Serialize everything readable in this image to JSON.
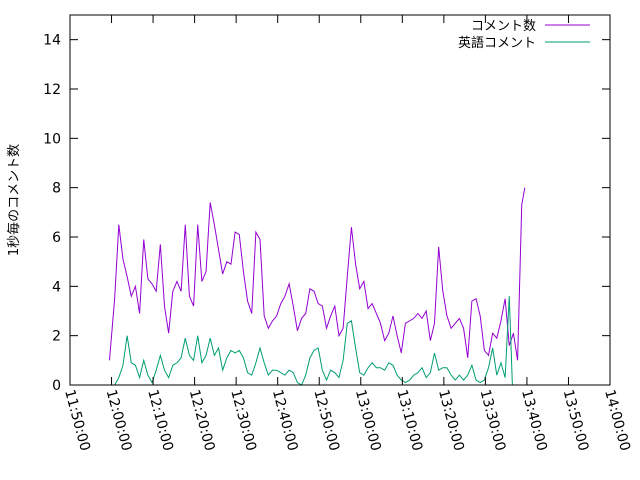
{
  "chart_data": {
    "type": "line",
    "title": "",
    "xlabel": "",
    "ylabel": "1秒毎のコメント数",
    "xlim": [
      "11:50:00",
      "14:00:00"
    ],
    "ylim": [
      0,
      15
    ],
    "x_ticks": [
      "11:50:00",
      "12:00:00",
      "12:10:00",
      "12:20:00",
      "12:30:00",
      "12:40:00",
      "12:50:00",
      "13:00:00",
      "13:10:00",
      "13:20:00",
      "13:30:00",
      "13:40:00",
      "13:50:00",
      "14:00:00"
    ],
    "y_ticks": [
      0,
      2,
      4,
      6,
      8,
      10,
      12,
      14
    ],
    "grid": false,
    "legend_position": "top-right",
    "series": [
      {
        "name": "コメント数",
        "color": "#9400d3",
        "points": [
          [
            "11:59:30",
            1.0
          ],
          [
            "12:00:45",
            3.5
          ],
          [
            "12:01:45",
            6.5
          ],
          [
            "12:02:45",
            5.1
          ],
          [
            "12:03:45",
            4.4
          ],
          [
            "12:04:45",
            3.6
          ],
          [
            "12:05:45",
            4.0
          ],
          [
            "12:06:45",
            2.9
          ],
          [
            "12:07:45",
            5.9
          ],
          [
            "12:08:45",
            4.3
          ],
          [
            "12:09:45",
            4.1
          ],
          [
            "12:10:45",
            3.8
          ],
          [
            "12:11:45",
            5.7
          ],
          [
            "12:12:45",
            3.2
          ],
          [
            "12:13:45",
            2.1
          ],
          [
            "12:14:45",
            3.8
          ],
          [
            "12:15:45",
            4.2
          ],
          [
            "12:16:45",
            3.8
          ],
          [
            "12:17:45",
            6.5
          ],
          [
            "12:18:45",
            3.6
          ],
          [
            "12:19:45",
            3.2
          ],
          [
            "12:20:45",
            6.5
          ],
          [
            "12:21:45",
            4.2
          ],
          [
            "12:22:45",
            4.6
          ],
          [
            "12:23:45",
            7.4
          ],
          [
            "12:24:45",
            6.5
          ],
          [
            "12:25:45",
            5.5
          ],
          [
            "12:26:45",
            4.5
          ],
          [
            "12:27:45",
            5.0
          ],
          [
            "12:28:45",
            4.9
          ],
          [
            "12:29:45",
            6.2
          ],
          [
            "12:30:45",
            6.1
          ],
          [
            "12:31:45",
            4.6
          ],
          [
            "12:32:45",
            3.4
          ],
          [
            "12:33:45",
            2.9
          ],
          [
            "12:34:45",
            6.2
          ],
          [
            "12:35:45",
            5.9
          ],
          [
            "12:36:45",
            2.8
          ],
          [
            "12:37:45",
            2.3
          ],
          [
            "12:38:45",
            2.6
          ],
          [
            "12:39:45",
            2.8
          ],
          [
            "12:40:45",
            3.3
          ],
          [
            "12:41:45",
            3.6
          ],
          [
            "12:42:45",
            4.1
          ],
          [
            "12:43:45",
            3.2
          ],
          [
            "12:44:45",
            2.2
          ],
          [
            "12:45:45",
            2.7
          ],
          [
            "12:46:45",
            2.9
          ],
          [
            "12:47:45",
            3.9
          ],
          [
            "12:48:45",
            3.8
          ],
          [
            "12:49:45",
            3.3
          ],
          [
            "12:50:45",
            3.2
          ],
          [
            "12:51:45",
            2.3
          ],
          [
            "12:52:45",
            2.8
          ],
          [
            "12:53:45",
            3.2
          ],
          [
            "12:54:45",
            2.0
          ],
          [
            "12:55:45",
            2.3
          ],
          [
            "12:56:45",
            4.4
          ],
          [
            "12:57:45",
            6.4
          ],
          [
            "12:58:45",
            4.9
          ],
          [
            "12:59:45",
            3.9
          ],
          [
            "13:00:45",
            4.2
          ],
          [
            "13:01:45",
            3.1
          ],
          [
            "13:02:45",
            3.3
          ],
          [
            "13:03:45",
            2.9
          ],
          [
            "13:04:45",
            2.5
          ],
          [
            "13:05:45",
            1.8
          ],
          [
            "13:06:45",
            2.1
          ],
          [
            "13:07:45",
            2.8
          ],
          [
            "13:08:45",
            2.0
          ],
          [
            "13:09:45",
            1.3
          ],
          [
            "13:10:45",
            2.5
          ],
          [
            "13:11:45",
            2.6
          ],
          [
            "13:12:45",
            2.7
          ],
          [
            "13:13:45",
            2.9
          ],
          [
            "13:14:45",
            2.7
          ],
          [
            "13:15:45",
            3.0
          ],
          [
            "13:16:45",
            1.8
          ],
          [
            "13:17:45",
            2.5
          ],
          [
            "13:18:45",
            5.6
          ],
          [
            "13:19:45",
            3.8
          ],
          [
            "13:20:45",
            2.8
          ],
          [
            "13:21:45",
            2.3
          ],
          [
            "13:22:45",
            2.5
          ],
          [
            "13:23:45",
            2.7
          ],
          [
            "13:24:45",
            2.3
          ],
          [
            "13:25:45",
            1.1
          ],
          [
            "13:26:45",
            3.4
          ],
          [
            "13:27:45",
            3.5
          ],
          [
            "13:28:45",
            2.8
          ],
          [
            "13:29:45",
            1.4
          ],
          [
            "13:30:45",
            1.2
          ],
          [
            "13:31:45",
            2.1
          ],
          [
            "13:32:45",
            1.9
          ],
          [
            "13:33:45",
            2.6
          ],
          [
            "13:34:45",
            3.5
          ],
          [
            "13:35:45",
            1.6
          ],
          [
            "13:36:45",
            2.1
          ],
          [
            "13:37:45",
            1.0
          ],
          [
            "13:38:45",
            7.3
          ],
          [
            "13:39:30",
            8.0
          ]
        ]
      },
      {
        "name": "英語コメント",
        "color": "#009e73",
        "points": [
          [
            "11:59:30",
            0.0
          ],
          [
            "12:00:45",
            0.0
          ],
          [
            "12:01:45",
            0.3
          ],
          [
            "12:02:45",
            0.8
          ],
          [
            "12:03:45",
            2.0
          ],
          [
            "12:04:45",
            0.9
          ],
          [
            "12:05:45",
            0.8
          ],
          [
            "12:06:45",
            0.3
          ],
          [
            "12:07:45",
            1.0
          ],
          [
            "12:08:45",
            0.4
          ],
          [
            "12:09:45",
            0.1
          ],
          [
            "12:10:45",
            0.6
          ],
          [
            "12:11:45",
            1.2
          ],
          [
            "12:12:45",
            0.6
          ],
          [
            "12:13:45",
            0.3
          ],
          [
            "12:14:45",
            0.8
          ],
          [
            "12:15:45",
            0.9
          ],
          [
            "12:16:45",
            1.1
          ],
          [
            "12:17:45",
            1.9
          ],
          [
            "12:18:45",
            1.2
          ],
          [
            "12:19:45",
            1.0
          ],
          [
            "12:20:45",
            2.0
          ],
          [
            "12:21:45",
            0.9
          ],
          [
            "12:22:45",
            1.2
          ],
          [
            "12:23:45",
            1.9
          ],
          [
            "12:24:45",
            1.2
          ],
          [
            "12:25:45",
            1.5
          ],
          [
            "12:26:45",
            0.6
          ],
          [
            "12:27:45",
            1.1
          ],
          [
            "12:28:45",
            1.4
          ],
          [
            "12:29:45",
            1.3
          ],
          [
            "12:30:45",
            1.4
          ],
          [
            "12:31:45",
            1.1
          ],
          [
            "12:32:45",
            0.5
          ],
          [
            "12:33:45",
            0.4
          ],
          [
            "12:34:45",
            0.9
          ],
          [
            "12:35:45",
            1.5
          ],
          [
            "12:36:45",
            0.9
          ],
          [
            "12:37:45",
            0.4
          ],
          [
            "12:38:45",
            0.6
          ],
          [
            "12:39:45",
            0.6
          ],
          [
            "12:40:45",
            0.5
          ],
          [
            "12:41:45",
            0.4
          ],
          [
            "12:42:45",
            0.6
          ],
          [
            "12:43:45",
            0.5
          ],
          [
            "12:44:45",
            0.1
          ],
          [
            "12:45:45",
            0.0
          ],
          [
            "12:46:45",
            0.4
          ],
          [
            "12:47:45",
            1.1
          ],
          [
            "12:48:45",
            1.4
          ],
          [
            "12:49:45",
            1.5
          ],
          [
            "12:50:45",
            0.6
          ],
          [
            "12:51:45",
            0.2
          ],
          [
            "12:52:45",
            0.6
          ],
          [
            "12:53:45",
            0.5
          ],
          [
            "12:54:45",
            0.3
          ],
          [
            "12:55:45",
            1.0
          ],
          [
            "12:56:45",
            2.5
          ],
          [
            "12:57:45",
            2.6
          ],
          [
            "12:58:45",
            1.5
          ],
          [
            "12:59:45",
            0.5
          ],
          [
            "13:00:45",
            0.4
          ],
          [
            "13:01:45",
            0.7
          ],
          [
            "13:02:45",
            0.9
          ],
          [
            "13:03:45",
            0.7
          ],
          [
            "13:04:45",
            0.7
          ],
          [
            "13:05:45",
            0.6
          ],
          [
            "13:06:45",
            0.9
          ],
          [
            "13:07:45",
            0.8
          ],
          [
            "13:08:45",
            0.4
          ],
          [
            "13:09:45",
            0.2
          ],
          [
            "13:10:45",
            0.1
          ],
          [
            "13:11:45",
            0.2
          ],
          [
            "13:12:45",
            0.4
          ],
          [
            "13:13:45",
            0.5
          ],
          [
            "13:14:45",
            0.7
          ],
          [
            "13:15:45",
            0.3
          ],
          [
            "13:16:45",
            0.5
          ],
          [
            "13:17:45",
            1.3
          ],
          [
            "13:18:45",
            0.6
          ],
          [
            "13:19:45",
            0.7
          ],
          [
            "13:20:45",
            0.7
          ],
          [
            "13:21:45",
            0.4
          ],
          [
            "13:22:45",
            0.2
          ],
          [
            "13:23:45",
            0.4
          ],
          [
            "13:24:45",
            0.2
          ],
          [
            "13:25:45",
            0.4
          ],
          [
            "13:26:45",
            0.8
          ],
          [
            "13:27:45",
            0.2
          ],
          [
            "13:28:45",
            0.1
          ],
          [
            "13:29:45",
            0.2
          ],
          [
            "13:30:45",
            0.7
          ],
          [
            "13:31:45",
            1.5
          ],
          [
            "13:32:45",
            0.4
          ],
          [
            "13:33:45",
            0.9
          ],
          [
            "13:34:45",
            0.3
          ],
          [
            "13:35:45",
            3.6
          ],
          [
            "13:36:30",
            0.0
          ]
        ]
      }
    ]
  }
}
